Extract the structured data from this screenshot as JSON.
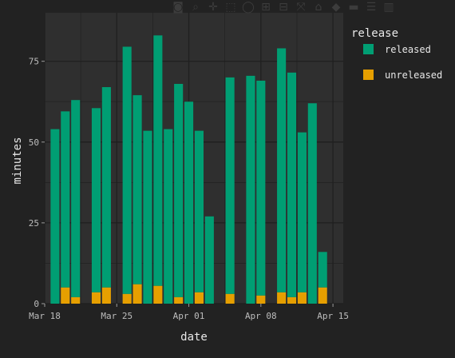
{
  "modebar": [
    {
      "name": "camera-icon",
      "glyph": "◙"
    },
    {
      "name": "zoom-icon",
      "glyph": "⌕"
    },
    {
      "name": "pan-icon",
      "glyph": "✛"
    },
    {
      "name": "box-select-icon",
      "glyph": "⬚"
    },
    {
      "name": "lasso-select-icon",
      "glyph": "◯"
    },
    {
      "name": "zoom-in-icon",
      "glyph": "⊞"
    },
    {
      "name": "zoom-out-icon",
      "glyph": "⊟"
    },
    {
      "name": "autoscale-icon",
      "glyph": "⤧"
    },
    {
      "name": "reset-axes-icon",
      "glyph": "⌂"
    },
    {
      "name": "spike-lines-icon",
      "glyph": "◆"
    },
    {
      "name": "hover-closest-icon",
      "glyph": "▬"
    },
    {
      "name": "hover-compare-icon",
      "glyph": "☰"
    },
    {
      "name": "plotly-logo-icon",
      "glyph": "▥"
    }
  ],
  "colors": {
    "background": "#222222",
    "panel": "#2f2f2f",
    "grid": "#1f1f1f",
    "released": "#009E73",
    "unreleased": "#E69F00"
  },
  "chart_data": {
    "type": "bar",
    "stacked": true,
    "xlabel": "date",
    "ylabel": "minutes",
    "legend_title": "release",
    "legend_position": "right",
    "xlim": [
      "2018-03-18",
      "2018-04-16"
    ],
    "ylim": [
      0,
      90
    ],
    "yticks": [
      0,
      25,
      50,
      75
    ],
    "xticks": [
      {
        "date": "2018-03-18",
        "label": "Mar 18"
      },
      {
        "date": "2018-03-25",
        "label": "Mar 25"
      },
      {
        "date": "2018-04-01",
        "label": "Apr 01"
      },
      {
        "date": "2018-04-08",
        "label": "Apr 08"
      },
      {
        "date": "2018-04-15",
        "label": "Apr 15"
      }
    ],
    "grid": true,
    "categories": [
      "2018-03-19",
      "2018-03-20",
      "2018-03-21",
      "2018-03-23",
      "2018-03-24",
      "2018-03-26",
      "2018-03-27",
      "2018-03-28",
      "2018-03-29",
      "2018-03-30",
      "2018-03-31",
      "2018-04-01",
      "2018-04-02",
      "2018-04-03",
      "2018-04-05",
      "2018-04-07",
      "2018-04-08",
      "2018-04-10",
      "2018-04-11",
      "2018-04-12",
      "2018-04-13",
      "2018-04-14"
    ],
    "series": [
      {
        "name": "unreleased",
        "values": [
          0,
          5,
          2,
          3.5,
          5,
          3,
          6,
          0,
          5.5,
          0,
          2,
          0,
          3.5,
          0,
          3,
          0,
          2.5,
          3.5,
          2,
          3.5,
          0,
          5
        ]
      },
      {
        "name": "released",
        "values": [
          54,
          54.5,
          61,
          57,
          62,
          76.5,
          58.5,
          53.5,
          77.5,
          54,
          66,
          62.5,
          50,
          27,
          67,
          70.5,
          66.5,
          75.5,
          69.5,
          49.5,
          62,
          11
        ]
      }
    ]
  }
}
